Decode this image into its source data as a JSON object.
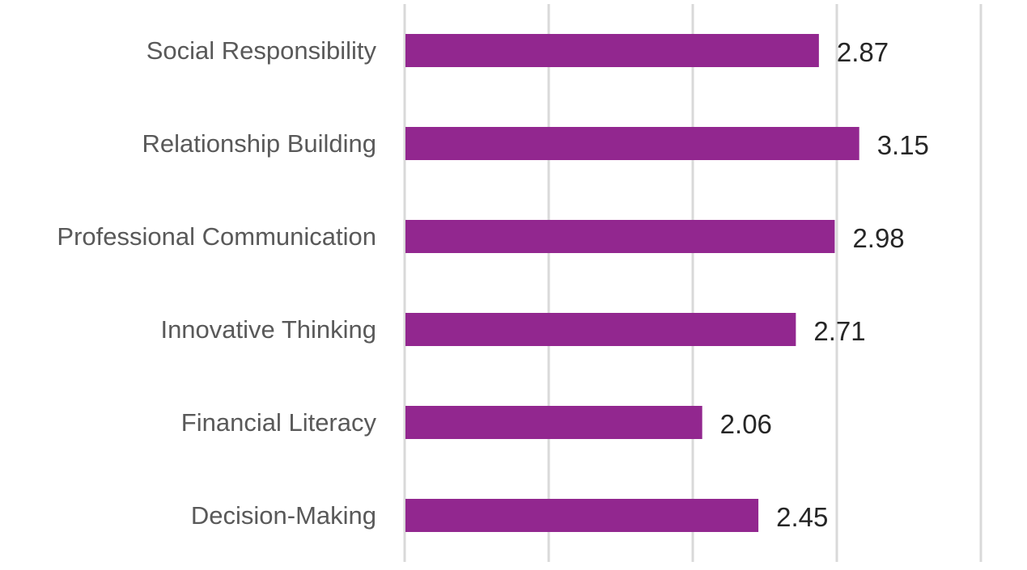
{
  "chart_data": {
    "type": "bar",
    "orientation": "horizontal",
    "categories": [
      "Social Responsibility",
      "Relationship Building",
      "Professional Communication",
      "Innovative Thinking",
      "Financial Literacy",
      "Decision-Making"
    ],
    "values": [
      2.87,
      3.15,
      2.98,
      2.71,
      2.06,
      2.45
    ],
    "data_labels": [
      "2.87",
      "3.15",
      "2.98",
      "2.71",
      "2.06",
      "2.45"
    ],
    "title": "",
    "xlabel": "",
    "ylabel": "",
    "xlim": [
      0,
      4
    ],
    "gridlines": true,
    "legend": "none",
    "bar_color": "#92278f",
    "grid_color": "#d9d9d9",
    "category_label_color": "#595959",
    "value_label_color": "#262626"
  }
}
